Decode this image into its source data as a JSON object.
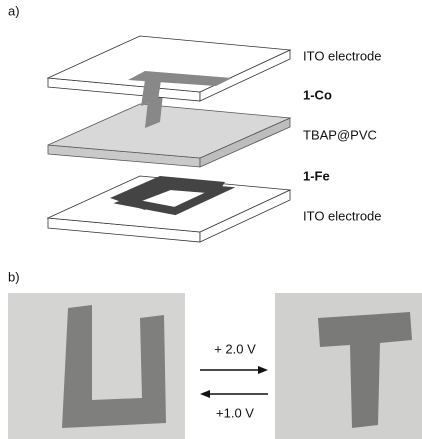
{
  "panel_a": {
    "label": "a)",
    "layers": [
      {
        "label": "ITO electrode"
      },
      {
        "label": "1-Co"
      },
      {
        "label": "TBAP@PVC"
      },
      {
        "label": "1-Fe"
      },
      {
        "label": "ITO electrode"
      }
    ]
  },
  "panel_b": {
    "label": "b)",
    "forward": "+ 2.0 V",
    "backward": "+1.0 V"
  }
}
